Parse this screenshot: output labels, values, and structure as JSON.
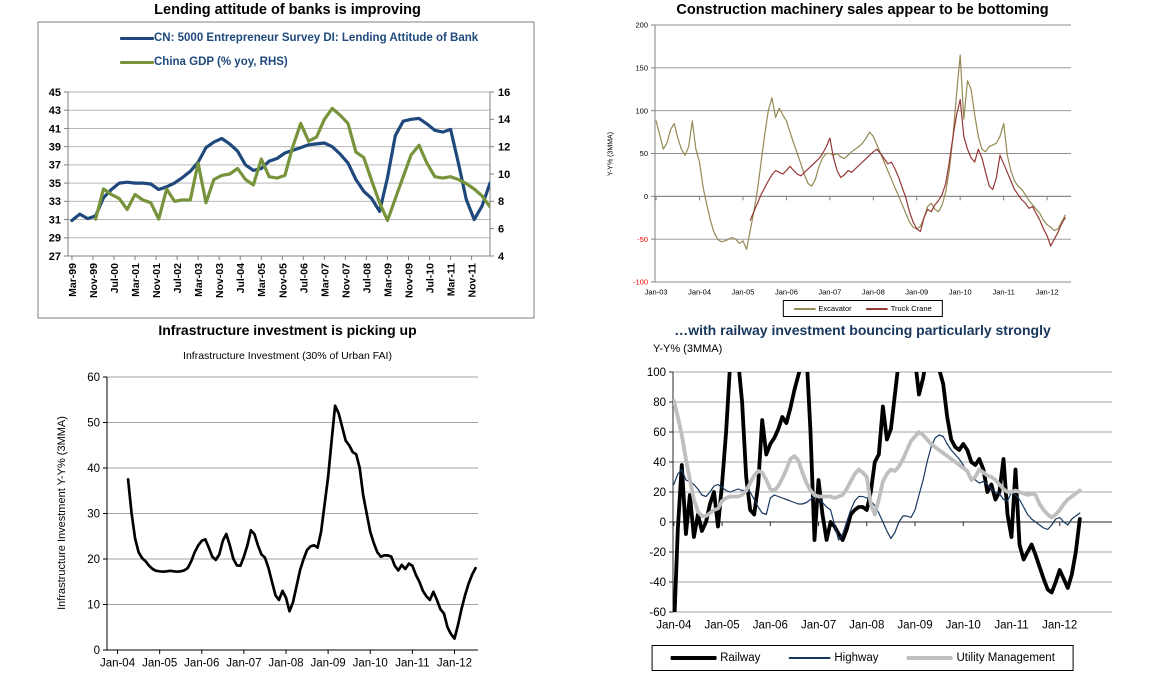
{
  "page": {
    "background": "#FFFFFF"
  },
  "chart_data": [
    {
      "type": "line",
      "title": "Lending attitude of banks is improving",
      "legend_position": "top-inside",
      "grid": true,
      "y_left": {
        "min": 27,
        "max": 45,
        "step": 2
      },
      "y_right": {
        "min": 4,
        "max": 16,
        "step": 2
      },
      "x_axis": {
        "pad_left": 1.5,
        "pad_right": 0,
        "last_month": 159,
        "tick_months": [
          0,
          8,
          16,
          24,
          32,
          40,
          48,
          56,
          64,
          72,
          80,
          88,
          96,
          104,
          112,
          120,
          128,
          136,
          144,
          152
        ],
        "tick_labels": [
          "Mar-99",
          "Nov-99",
          "Jul-00",
          "Mar-01",
          "Nov-01",
          "Jul-02",
          "Mar-03",
          "Nov-03",
          "Jul-04",
          "Mar-05",
          "Nov-05",
          "Jul-06",
          "Mar-07",
          "Nov-07",
          "Jul-08",
          "Mar-09",
          "Nov-09",
          "Jul-10",
          "Mar-11",
          "Nov-11"
        ]
      },
      "series": [
        {
          "name": "CN: 5000 Entrepreneur Survey DI: Lending Attitude of Bank",
          "axis": "left",
          "color": "#1F497D",
          "width": 3.2,
          "start_month": 0,
          "step_months": 3,
          "values": [
            30.9,
            31.6,
            31.1,
            31.4,
            33.4,
            34.3,
            35.0,
            35.1,
            35.0,
            35.0,
            34.9,
            34.3,
            34.6,
            35.0,
            35.6,
            36.3,
            37.3,
            38.9,
            39.5,
            39.9,
            39.3,
            38.5,
            37.0,
            36.4,
            36.6,
            37.4,
            37.7,
            38.3,
            38.6,
            38.9,
            39.2,
            39.3,
            39.4,
            39.0,
            38.2,
            37.2,
            35.4,
            34.1,
            33.3,
            31.9,
            35.6,
            40.2,
            41.8,
            42.0,
            42.1,
            41.5,
            40.8,
            40.6,
            40.9,
            37.2,
            33.2,
            31.0,
            32.5,
            35.0
          ]
        },
        {
          "name": "China GDP (% yoy, RHS)",
          "axis": "right",
          "color": "#77933C",
          "width": 3.2,
          "start_month": 9,
          "step_months": 3,
          "values": [
            6.7,
            8.9,
            8.5,
            8.2,
            7.4,
            8.5,
            8.1,
            7.9,
            6.7,
            8.9,
            8.0,
            8.1,
            8.1,
            10.8,
            7.9,
            9.6,
            9.9,
            10.0,
            10.4,
            9.6,
            9.2,
            11.1,
            9.8,
            9.7,
            9.9,
            12.0,
            13.7,
            12.4,
            12.7,
            14.0,
            14.8,
            14.3,
            13.7,
            11.6,
            11.2,
            9.5,
            7.9,
            6.6,
            8.2,
            9.8,
            11.4,
            12.1,
            10.8,
            9.8,
            9.7,
            9.8,
            9.6,
            9.3,
            8.9,
            8.4,
            7.6
          ]
        }
      ]
    },
    {
      "type": "line",
      "title": "Construction machinery sales appear to be bottoming",
      "y_axis_title": "Y-Y% (3MMA)",
      "grid": true,
      "y_left": {
        "min": -100,
        "max": 200,
        "step": 50,
        "negative_red": true
      },
      "x_axis": {
        "pad_left": 0.3,
        "pad_right": 1.6,
        "last_month": 113,
        "tick_months": [
          0,
          12,
          24,
          36,
          48,
          60,
          72,
          84,
          96,
          108
        ],
        "tick_labels": [
          "Jan-03",
          "Jan-04",
          "Jan-05",
          "Jan-06",
          "Jan-07",
          "Jan-08",
          "Jan-09",
          "Jan-10",
          "Jan-11",
          "Jan-12"
        ]
      },
      "series": [
        {
          "name": "Excavator",
          "axis": "left",
          "color": "#948A54",
          "width": 1.2,
          "start_month": 0,
          "step_months": 1,
          "values": [
            88,
            72,
            55,
            62,
            78,
            85,
            68,
            55,
            48,
            58,
            88,
            55,
            40,
            10,
            -10,
            -28,
            -42,
            -50,
            -53,
            -52,
            -50,
            -48,
            -50,
            -55,
            -52,
            -62,
            -40,
            -18,
            8,
            40,
            72,
            100,
            115,
            92,
            103,
            95,
            88,
            75,
            62,
            50,
            38,
            25,
            15,
            12,
            20,
            35,
            45,
            50,
            50,
            48,
            50,
            46,
            44,
            48,
            52,
            55,
            58,
            62,
            68,
            75,
            70,
            60,
            50,
            40,
            30,
            20,
            10,
            0,
            -10,
            -20,
            -30,
            -36,
            -38,
            -35,
            -25,
            -12,
            -8,
            -15,
            -18,
            -10,
            5,
            30,
            70,
            120,
            165,
            90,
            135,
            125,
            95,
            70,
            55,
            52,
            58,
            60,
            62,
            70,
            85,
            48,
            30,
            18,
            12,
            8,
            2,
            -5,
            -10,
            -15,
            -20,
            -28,
            -33,
            -36,
            -40,
            -38,
            -30,
            -22
          ]
        },
        {
          "name": "Truck Crane",
          "axis": "left",
          "color": "#953735",
          "width": 1.2,
          "start_month": 26,
          "step_months": 1,
          "values": [
            -28,
            -18,
            -8,
            2,
            10,
            18,
            25,
            30,
            28,
            26,
            30,
            35,
            30,
            26,
            24,
            28,
            32,
            36,
            40,
            44,
            50,
            58,
            68,
            45,
            30,
            22,
            25,
            30,
            28,
            32,
            36,
            40,
            44,
            48,
            52,
            55,
            50,
            44,
            38,
            40,
            32,
            22,
            10,
            -2,
            -18,
            -30,
            -38,
            -41,
            -25,
            -15,
            -18,
            -10,
            -5,
            2,
            15,
            40,
            70,
            95,
            113,
            70,
            55,
            45,
            40,
            55,
            45,
            28,
            12,
            8,
            22,
            48,
            38,
            28,
            18,
            8,
            2,
            -4,
            -8,
            -14,
            -12,
            -20,
            -28,
            -38,
            -46,
            -58,
            -50,
            -42,
            -32,
            -25
          ]
        }
      ]
    },
    {
      "type": "line",
      "title": "Infrastructure investment is picking up",
      "subtitle": "Infrastructure Investment (30% of Urban FAI)",
      "y_axis_title": "Infrastructure Investment Y-Y% (3MMA)",
      "grid": true,
      "y_left": {
        "min": 0,
        "max": 60,
        "step": 10
      },
      "x_axis": {
        "pad_left": 3,
        "pad_right": 0.7,
        "last_month": 102,
        "tick_months": [
          0,
          12,
          24,
          36,
          48,
          60,
          72,
          84,
          96
        ],
        "tick_labels": [
          "Jan-04",
          "Jan-05",
          "Jan-06",
          "Jan-07",
          "Jan-08",
          "Jan-09",
          "Jan-10",
          "Jan-11",
          "Jan-12"
        ]
      },
      "series": [
        {
          "name": "Infrastructure Investment",
          "axis": "left",
          "color": "#000000",
          "width": 2.7,
          "start_month": 3,
          "step_months": 1,
          "values": [
            37.5,
            30.0,
            24.5,
            21.5,
            20.2,
            19.5,
            18.5,
            17.8,
            17.4,
            17.3,
            17.2,
            17.3,
            17.4,
            17.3,
            17.2,
            17.3,
            17.5,
            18.0,
            19.5,
            21.5,
            23.0,
            24.0,
            24.3,
            22.5,
            20.5,
            19.8,
            21.0,
            24.0,
            25.5,
            23.0,
            20.0,
            18.6,
            18.5,
            20.5,
            23.0,
            26.3,
            25.5,
            23.0,
            21.0,
            20.3,
            18.0,
            15.0,
            12.0,
            11.0,
            13.0,
            11.5,
            8.5,
            10.5,
            14.0,
            17.5,
            20.0,
            22.0,
            22.8,
            23.0,
            22.5,
            26.0,
            32.0,
            38.0,
            46.0,
            53.7,
            52.0,
            49.0,
            46.0,
            45.0,
            43.5,
            43.0,
            40.0,
            34.0,
            30.0,
            26.0,
            23.5,
            21.5,
            20.5,
            20.8,
            20.8,
            20.5,
            18.5,
            17.5,
            18.7,
            17.8,
            19.0,
            18.5,
            16.5,
            15.0,
            13.0,
            11.8,
            11.0,
            12.8,
            11.0,
            9.0,
            8.0,
            5.0,
            3.5,
            2.5,
            5.5,
            9.0,
            12.0,
            14.5,
            16.5,
            18.0
          ]
        }
      ]
    },
    {
      "type": "line",
      "title": "…with railway investment bouncing particularly strongly",
      "subtitle": "Y-Y% (3MMA)",
      "grid": true,
      "y_left": {
        "min": -60,
        "max": 100,
        "step": 20
      },
      "x_axis": {
        "pad_left": 0.2,
        "pad_right": 8,
        "last_month": 101,
        "tick_months": [
          0,
          12,
          24,
          36,
          48,
          60,
          72,
          84,
          96
        ],
        "tick_labels": [
          "Jan-04",
          "Jan-05",
          "Jan-06",
          "Jan-07",
          "Jan-08",
          "Jan-09",
          "Jan-10",
          "Jan-11",
          "Jan-12"
        ]
      },
      "series": [
        {
          "name": "Railway",
          "axis": "left",
          "color": "#000000",
          "width": 3.8,
          "start_month": 0,
          "step_months": 1,
          "values": [
            -75,
            -5,
            38,
            -8,
            18,
            -10,
            5,
            -6,
            0,
            12,
            20,
            -3,
            25,
            60,
            105,
            115,
            108,
            80,
            30,
            8,
            5,
            25,
            68,
            45,
            52,
            56,
            62,
            70,
            66,
            76,
            88,
            98,
            108,
            112,
            60,
            -12,
            28,
            5,
            -12,
            0,
            -3,
            -8,
            -12,
            -5,
            5,
            8,
            10,
            10,
            8,
            20,
            40,
            45,
            77,
            55,
            62,
            85,
            108,
            118,
            122,
            115,
            108,
            85,
            96,
            112,
            118,
            112,
            102,
            92,
            70,
            55,
            50,
            48,
            52,
            48,
            40,
            38,
            42,
            35,
            20,
            25,
            15,
            20,
            42,
            5,
            -10,
            35,
            -15,
            -25,
            -20,
            -15,
            -22,
            -30,
            -38,
            -45,
            -47,
            -40,
            -32,
            -38,
            -44,
            -35,
            -20,
            2
          ]
        },
        {
          "name": "Highway",
          "axis": "left",
          "color": "#17375E",
          "width": 1.2,
          "start_month": 0,
          "step_months": 1,
          "values": [
            25,
            32,
            35,
            28,
            27,
            25,
            22,
            18,
            17,
            20,
            24,
            25,
            23,
            21,
            20,
            21,
            22,
            21,
            21,
            20,
            15,
            10,
            6,
            5,
            16,
            18,
            17,
            16,
            15,
            14,
            13,
            12,
            12,
            13,
            15,
            17,
            16,
            13,
            10,
            8,
            -2,
            -12,
            -8,
            0,
            8,
            14,
            17,
            17,
            16,
            14,
            11,
            6,
            0,
            -6,
            -11,
            -7,
            0,
            4,
            4,
            3,
            8,
            18,
            28,
            40,
            50,
            56,
            58,
            57,
            52,
            48,
            45,
            42,
            38,
            33,
            30,
            28,
            26,
            27,
            25,
            22,
            20,
            19,
            15,
            14,
            20,
            18,
            15,
            10,
            5,
            2,
            0,
            -2,
            -4,
            -5,
            -2,
            2,
            3,
            0,
            -2,
            2,
            4,
            6
          ]
        },
        {
          "name": "Utility Management",
          "axis": "left",
          "color": "#BFBFBF",
          "width": 3.8,
          "start_month": 0,
          "step_months": 1,
          "values": [
            81,
            70,
            58,
            42,
            28,
            15,
            7,
            4,
            4,
            6,
            8,
            9,
            14,
            16,
            17,
            17,
            17,
            18,
            21,
            26,
            31,
            34,
            33,
            28,
            22,
            21,
            24,
            29,
            35,
            42,
            44,
            41,
            33,
            26,
            21,
            18,
            17,
            17,
            17,
            17,
            16,
            17,
            18,
            22,
            27,
            32,
            35,
            33,
            30,
            12,
            5,
            15,
            27,
            32,
            35,
            34,
            37,
            42,
            48,
            54,
            57,
            60,
            58,
            55,
            52,
            50,
            48,
            46,
            44,
            42,
            40,
            38,
            36,
            34,
            28,
            30,
            35,
            33,
            31,
            30,
            28,
            25,
            22,
            20,
            20,
            21,
            20,
            19,
            18,
            19,
            18,
            12,
            8,
            5,
            3,
            5,
            8,
            12,
            15,
            17,
            19,
            21
          ]
        }
      ]
    }
  ]
}
